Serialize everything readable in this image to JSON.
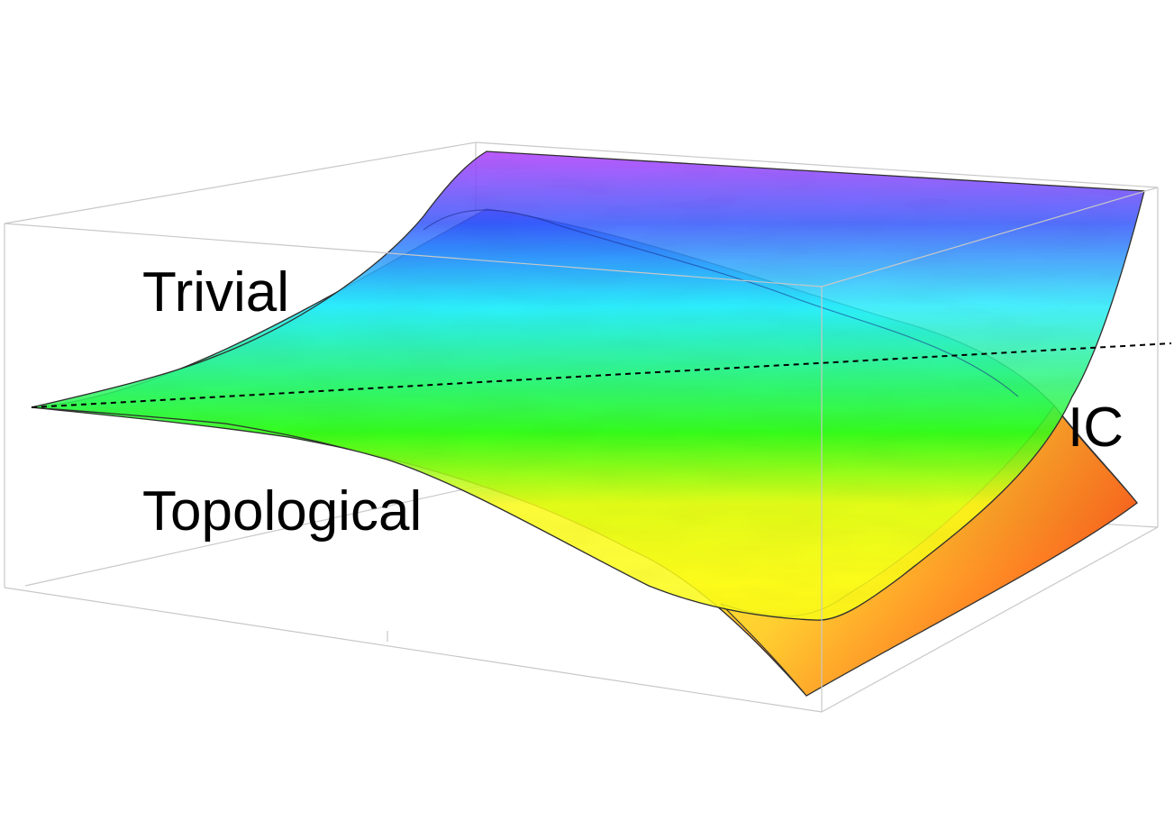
{
  "labels": {
    "upper_region": "Trivial",
    "lower_region": "Topological",
    "right_region": "IC"
  },
  "colors": {
    "gradient_top": "#c040ff",
    "gradient_upper": "#3a5cff",
    "gradient_mid_cyan": "#2ef0ff",
    "gradient_mid_green": "#36ff20",
    "gradient_lower": "#ffff20",
    "gradient_bottom": "#ff2020",
    "box_edges": "#c8c8c8",
    "surface_outline": "#333333",
    "boundary_line": "#000000"
  }
}
